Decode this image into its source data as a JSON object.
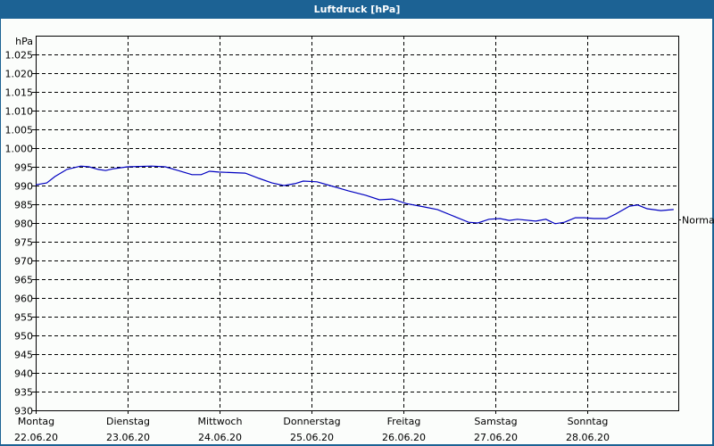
{
  "window": {
    "title": "Luftdruck [hPa]"
  },
  "colors": {
    "titlebar": "#1c6294",
    "background": "#fbfdfb",
    "line": "#0000c0",
    "grid": "#000000"
  },
  "chart_data": {
    "type": "line",
    "title": "Luftdruck [hPa]",
    "ylabel": "hPa",
    "xlabel": "",
    "ylim": [
      930,
      1030
    ],
    "yticks": [
      930,
      935,
      940,
      945,
      950,
      955,
      960,
      965,
      970,
      975,
      980,
      985,
      990,
      995,
      1000,
      1005,
      1010,
      1015,
      1020,
      1025
    ],
    "ytick_labels": [
      "930",
      "935",
      "940",
      "945",
      "950",
      "955",
      "960",
      "965",
      "970",
      "975",
      "980",
      "985",
      "990",
      "995",
      "1.000",
      "1.005",
      "1.010",
      "1.015",
      "1.020",
      "1.025"
    ],
    "x_categories": [
      {
        "day": "Montag",
        "date": "22.06.20"
      },
      {
        "day": "Dienstag",
        "date": "23.06.20"
      },
      {
        "day": "Mittwoch",
        "date": "24.06.20"
      },
      {
        "day": "Donnerstag",
        "date": "25.06.20"
      },
      {
        "day": "Freitag",
        "date": "26.06.20"
      },
      {
        "day": "Samstag",
        "date": "27.06.20"
      },
      {
        "day": "Sonntag",
        "date": "28.06.20"
      }
    ],
    "grid": true,
    "annotation": {
      "label": "Normal",
      "value": 981
    },
    "series": [
      {
        "name": "Luftdruck",
        "x_days": [
          0.0,
          0.12,
          0.21,
          0.34,
          0.49,
          0.58,
          0.68,
          0.76,
          0.85,
          1.0,
          1.26,
          1.41,
          1.55,
          1.7,
          1.8,
          1.89,
          1.99,
          2.28,
          2.43,
          2.57,
          2.7,
          2.82,
          2.91,
          3.06,
          3.2,
          3.4,
          3.59,
          3.74,
          3.88,
          4.03,
          4.22,
          4.37,
          4.56,
          4.71,
          4.81,
          4.93,
          5.05,
          5.15,
          5.24,
          5.44,
          5.55,
          5.65,
          5.75,
          5.87,
          5.97,
          6.07,
          6.21,
          6.31,
          6.46,
          6.55,
          6.65,
          6.8,
          6.94
        ],
        "values": [
          990.2,
          990.7,
          992.4,
          994.3,
          995.2,
          995.0,
          994.3,
          994.0,
          994.5,
          995.0,
          995.2,
          995.0,
          994.0,
          992.9,
          992.9,
          993.8,
          993.6,
          993.3,
          991.9,
          990.7,
          990.0,
          990.5,
          991.2,
          991.0,
          990.0,
          988.6,
          987.4,
          986.2,
          986.4,
          985.2,
          984.3,
          983.6,
          981.7,
          980.2,
          980.0,
          981.0,
          981.2,
          980.7,
          981.0,
          980.5,
          981.0,
          979.8,
          980.2,
          981.4,
          981.4,
          981.2,
          981.2,
          982.4,
          984.5,
          984.8,
          983.8,
          983.3,
          983.6
        ]
      }
    ]
  }
}
